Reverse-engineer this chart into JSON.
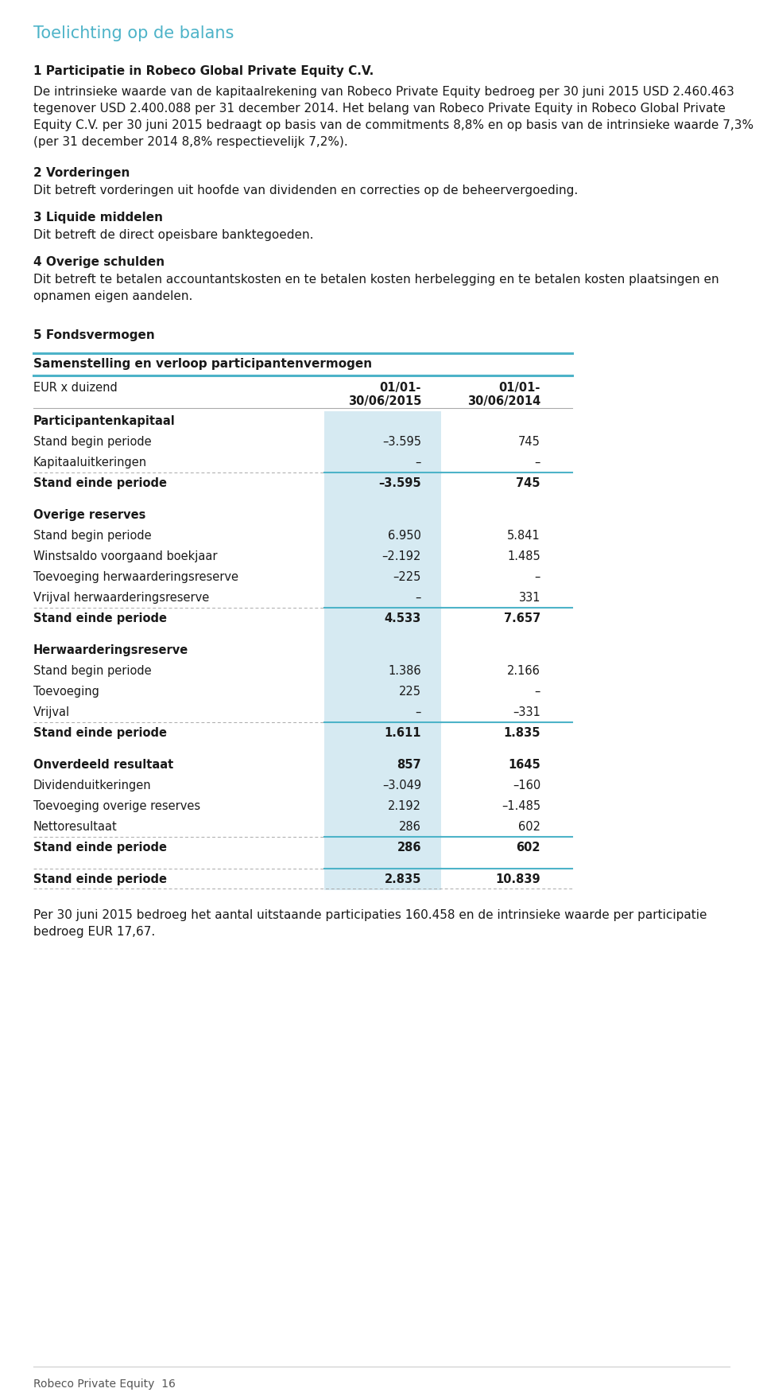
{
  "title": "Toelichting op de balans",
  "title_color": "#4db3c8",
  "background_color": "#ffffff",
  "text_color": "#1a1a1a",
  "teal_color": "#4db3c8",
  "light_blue_bg": "#d6eaf2",
  "section1_heading": "1 Participatie in Robeco Global Private Equity C.V.",
  "section1_text_lines": [
    "De intrinsieke waarde van de kapitaalrekening van Robeco Private Equity bedroeg per 30 juni 2015 USD 2.460.463",
    "tegenover USD 2.400.088 per 31 december 2014. Het belang van Robeco Private Equity in Robeco Global Private",
    "Equity C.V. per 30 juni 2015 bedraagt op basis van de commitments 8,8% en op basis van de intrinsieke waarde 7,3%",
    "(per 31 december 2014 8,8% respectievelijk 7,2%)."
  ],
  "section2_heading": "2 Vorderingen",
  "section2_text": "Dit betreft vorderingen uit hoofde van dividenden en correcties op de beheervergoeding.",
  "section3_heading": "3 Liquide middelen",
  "section3_text": "Dit betreft de direct opeisbare banktegoeden.",
  "section4_heading": "4 Overige schulden",
  "section4_text_lines": [
    "Dit betreft te betalen accountantskosten en te betalen kosten herbelegging en te betalen kosten plaatsingen en",
    "opnamen eigen aandelen."
  ],
  "section5_heading": "5 Fondsvermogen",
  "table_header": "Samenstelling en verloop participantenvermogen",
  "col_label": "EUR x duizend",
  "col1_header1": "01/01-",
  "col1_header2": "30/06/2015",
  "col2_header1": "01/01-",
  "col2_header2": "30/06/2014",
  "rows": [
    {
      "label": "Participantenkapitaal",
      "bold": true,
      "val1": "",
      "val2": "",
      "section_header": true,
      "spacer_after": false
    },
    {
      "label": "Stand begin periode",
      "bold": false,
      "val1": "–3.595",
      "val2": "745",
      "spacer_after": false
    },
    {
      "label": "Kapitaaluitkeringen",
      "bold": false,
      "val1": "–",
      "val2": "–",
      "spacer_after": false
    },
    {
      "label": "Stand einde periode",
      "bold": true,
      "val1": "–3.595",
      "val2": "745",
      "subtotal": true,
      "spacer_after": true
    },
    {
      "label": "Overige reserves",
      "bold": true,
      "val1": "",
      "val2": "",
      "section_header": true,
      "spacer_after": false
    },
    {
      "label": "Stand begin periode",
      "bold": false,
      "val1": "6.950",
      "val2": "5.841",
      "spacer_after": false
    },
    {
      "label": "Winstsaldo voorgaand boekjaar",
      "bold": false,
      "val1": "–2.192",
      "val2": "1.485",
      "spacer_after": false
    },
    {
      "label": "Toevoeging herwaarderingsreserve",
      "bold": false,
      "val1": "–225",
      "val2": "–",
      "spacer_after": false
    },
    {
      "label": "Vrijval herwaarderingsreserve",
      "bold": false,
      "val1": "–",
      "val2": "331",
      "spacer_after": false
    },
    {
      "label": "Stand einde periode",
      "bold": true,
      "val1": "4.533",
      "val2": "7.657",
      "subtotal": true,
      "spacer_after": true
    },
    {
      "label": "Herwaarderingsreserve",
      "bold": true,
      "val1": "",
      "val2": "",
      "section_header": true,
      "spacer_after": false
    },
    {
      "label": "Stand begin periode",
      "bold": false,
      "val1": "1.386",
      "val2": "2.166",
      "spacer_after": false
    },
    {
      "label": "Toevoeging",
      "bold": false,
      "val1": "225",
      "val2": "–",
      "spacer_after": false
    },
    {
      "label": "Vrijval",
      "bold": false,
      "val1": "–",
      "val2": "–331",
      "spacer_after": false
    },
    {
      "label": "Stand einde periode",
      "bold": true,
      "val1": "1.611",
      "val2": "1.835",
      "subtotal": true,
      "spacer_after": true
    },
    {
      "label": "Onverdeeld resultaat",
      "bold": true,
      "val1": "857",
      "val2": "1645",
      "spacer_after": false
    },
    {
      "label": "Dividenduitkeringen",
      "bold": false,
      "val1": "–3.049",
      "val2": "–160",
      "spacer_after": false
    },
    {
      "label": "Toevoeging overige reserves",
      "bold": false,
      "val1": "2.192",
      "val2": "–1.485",
      "spacer_after": false
    },
    {
      "label": "Nettoresultaat",
      "bold": false,
      "val1": "286",
      "val2": "602",
      "spacer_after": false
    },
    {
      "label": "Stand einde periode",
      "bold": true,
      "val1": "286",
      "val2": "602",
      "subtotal": true,
      "spacer_after": true
    },
    {
      "label": "Stand einde periode",
      "bold": true,
      "val1": "2.835",
      "val2": "10.839",
      "total": true,
      "spacer_after": false
    }
  ],
  "footer_text_lines": [
    "Per 30 juni 2015 bedroeg het aantal uitstaande participaties 160.458 en de intrinsieke waarde per participatie",
    "bedroeg EUR 17,67."
  ],
  "page_footer": "Robeco Private Equity  16"
}
